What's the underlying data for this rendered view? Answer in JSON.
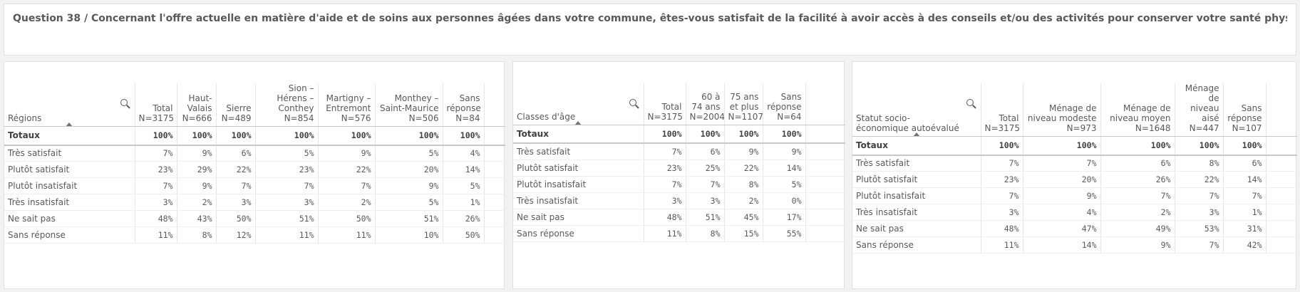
{
  "question": "Question 38 / Concernant l'offre actuelle en matière d'aide et de soins aux personnes âgées dans votre commune, êtes-vous satisfait de la facilité à avoir accès à des conseils et/ou des activités pour conserver votre santé physique ou psychique ?",
  "tables": [
    {
      "dimension": "Régions",
      "columns": [
        "Total N=3175",
        "Haut-Valais N=666",
        "Sierre N=489",
        "Sion – Hérens – Conthey N=854",
        "Martigny – Entremont N=576",
        "Monthey – Saint-Maurice N=506",
        "Sans réponse N=84"
      ],
      "rows": [
        {
          "label": "Totaux",
          "values": [
            "100%",
            "100%",
            "100%",
            "100%",
            "100%",
            "100%",
            "100%"
          ]
        },
        {
          "label": "Très satisfait",
          "values": [
            "7%",
            "9%",
            "6%",
            "5%",
            "9%",
            "5%",
            "4%"
          ]
        },
        {
          "label": "Plutôt satisfait",
          "values": [
            "23%",
            "29%",
            "22%",
            "23%",
            "22%",
            "20%",
            "14%"
          ]
        },
        {
          "label": "Plutôt insatisfait",
          "values": [
            "7%",
            "9%",
            "7%",
            "7%",
            "7%",
            "9%",
            "5%"
          ]
        },
        {
          "label": "Très insatisfait",
          "values": [
            "3%",
            "2%",
            "3%",
            "3%",
            "2%",
            "5%",
            "1%"
          ]
        },
        {
          "label": "Ne sait pas",
          "values": [
            "48%",
            "43%",
            "50%",
            "51%",
            "50%",
            "51%",
            "26%"
          ]
        },
        {
          "label": "Sans réponse",
          "values": [
            "11%",
            "8%",
            "12%",
            "11%",
            "11%",
            "10%",
            "50%"
          ]
        }
      ]
    },
    {
      "dimension": "Classes d'âge",
      "columns": [
        "Total N=3175",
        "60 à 74 ans N=2004",
        "75 ans et plus N=1107",
        "Sans réponse N=64"
      ],
      "rows": [
        {
          "label": "Totaux",
          "values": [
            "100%",
            "100%",
            "100%",
            "100%"
          ]
        },
        {
          "label": "Très satisfait",
          "values": [
            "7%",
            "6%",
            "9%",
            "9%"
          ]
        },
        {
          "label": "Plutôt satisfait",
          "values": [
            "23%",
            "25%",
            "22%",
            "14%"
          ]
        },
        {
          "label": "Plutôt insatisfait",
          "values": [
            "7%",
            "7%",
            "8%",
            "5%"
          ]
        },
        {
          "label": "Très insatisfait",
          "values": [
            "3%",
            "3%",
            "2%",
            "0%"
          ]
        },
        {
          "label": "Ne sait pas",
          "values": [
            "48%",
            "51%",
            "45%",
            "17%"
          ]
        },
        {
          "label": "Sans réponse",
          "values": [
            "11%",
            "8%",
            "15%",
            "55%"
          ]
        }
      ]
    },
    {
      "dimension": "Statut socio-économique autoévalué",
      "columns": [
        "Total N=3175",
        "Ménage de niveau modeste N=973",
        "Ménage de niveau moyen N=1648",
        "Ménage de niveau aisé N=447",
        "Sans réponse N=107"
      ],
      "rows": [
        {
          "label": "Totaux",
          "values": [
            "100%",
            "100%",
            "100%",
            "100%",
            "100%"
          ]
        },
        {
          "label": "Très satisfait",
          "values": [
            "7%",
            "7%",
            "6%",
            "8%",
            "6%"
          ]
        },
        {
          "label": "Plutôt satisfait",
          "values": [
            "23%",
            "20%",
            "26%",
            "22%",
            "14%"
          ]
        },
        {
          "label": "Plutôt insatisfait",
          "values": [
            "7%",
            "9%",
            "7%",
            "7%",
            "7%"
          ]
        },
        {
          "label": "Très insatisfait",
          "values": [
            "3%",
            "4%",
            "2%",
            "3%",
            "1%"
          ]
        },
        {
          "label": "Ne sait pas",
          "values": [
            "48%",
            "47%",
            "49%",
            "53%",
            "31%"
          ]
        },
        {
          "label": "Sans réponse",
          "values": [
            "11%",
            "14%",
            "9%",
            "7%",
            "42%"
          ]
        }
      ]
    }
  ]
}
